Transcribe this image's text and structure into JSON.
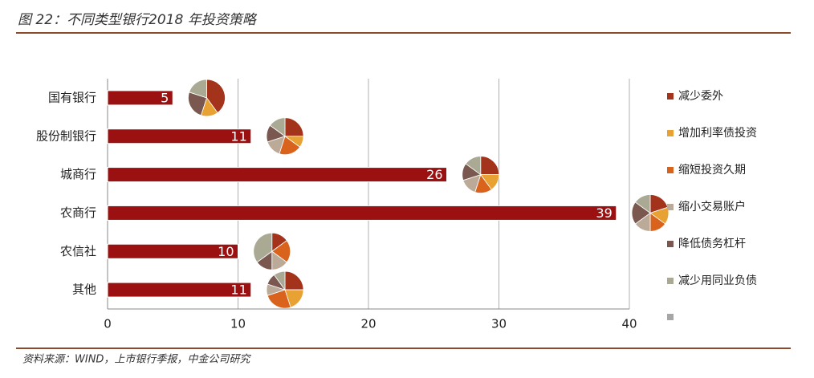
{
  "chart_data": {
    "type": "bar",
    "title": "图 22：不同类型银行2018 年投资策略",
    "source": "资料来源：WIND，上市银行季报，中金公司研究",
    "categories": [
      "国有银行",
      "股份制银行",
      "城商行",
      "农商行",
      "农信社",
      "其他"
    ],
    "values": [
      5,
      11,
      26,
      39,
      10,
      11
    ],
    "color": "#9b1111",
    "xlim": [
      0,
      40
    ],
    "xticks": [
      0,
      10,
      20,
      30,
      40
    ],
    "grid": true,
    "series": [
      {
        "name": "减少委外",
        "color": "#a3331a",
        "values": [
          40,
          25,
          25,
          20,
          15,
          25
        ]
      },
      {
        "name": "增加利率债投资",
        "color": "#e8a233",
        "values": [
          15,
          10,
          15,
          15,
          0,
          20
        ]
      },
      {
        "name": "缩短投资久期",
        "color": "#d9621c",
        "values": [
          0,
          20,
          15,
          15,
          20,
          25
        ]
      },
      {
        "name": "缩小交易账户",
        "color": "#bcaa98",
        "values": [
          0,
          15,
          15,
          15,
          15,
          10
        ]
      },
      {
        "name": "降低债务杠杆",
        "color": "#7a5850",
        "values": [
          25,
          15,
          15,
          20,
          15,
          10
        ]
      },
      {
        "name": "减少用同业负债",
        "color": "#a9a994",
        "values": [
          20,
          15,
          15,
          15,
          35,
          10
        ]
      }
    ]
  }
}
